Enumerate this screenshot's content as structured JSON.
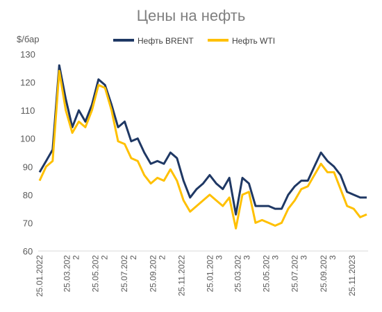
{
  "chart_data": {
    "type": "line",
    "title": "Цены на нефть",
    "ylabel": "$/бар",
    "ylim": [
      60,
      130
    ],
    "yticks": [
      60,
      70,
      80,
      90,
      100,
      110,
      120,
      130
    ],
    "grid": false,
    "legend_position": "top-center",
    "x_tick_labels": [
      [
        "25.01.2022"
      ],
      [
        "25.03.202",
        "2"
      ],
      [
        "25.05.202",
        "2"
      ],
      [
        "25.07.202",
        "2"
      ],
      [
        "25.09.202",
        "2"
      ],
      [
        "25.11.2022"
      ],
      [
        "25.01.202",
        "3"
      ],
      [
        "25.03.202",
        "3"
      ],
      [
        "25.05.202",
        "3"
      ],
      [
        "25.07.202",
        "3"
      ],
      [
        "25.09.202",
        "3"
      ],
      [
        "25.11.2023"
      ]
    ],
    "x": [
      "2022-01-25",
      "2022-02-08",
      "2022-02-22",
      "2022-03-08",
      "2022-03-22",
      "2022-04-05",
      "2022-04-19",
      "2022-05-03",
      "2022-05-17",
      "2022-05-31",
      "2022-06-14",
      "2022-06-28",
      "2022-07-12",
      "2022-07-26",
      "2022-08-09",
      "2022-08-23",
      "2022-09-06",
      "2022-09-20",
      "2022-10-04",
      "2022-10-18",
      "2022-11-01",
      "2022-11-15",
      "2022-11-29",
      "2022-12-13",
      "2022-12-27",
      "2023-01-10",
      "2023-01-24",
      "2023-02-07",
      "2023-02-21",
      "2023-03-07",
      "2023-03-21",
      "2023-04-04",
      "2023-04-18",
      "2023-05-02",
      "2023-05-16",
      "2023-05-30",
      "2023-06-13",
      "2023-06-27",
      "2023-07-11",
      "2023-07-25",
      "2023-08-08",
      "2023-08-22",
      "2023-09-05",
      "2023-09-19",
      "2023-10-03",
      "2023-10-17",
      "2023-10-31",
      "2023-11-14",
      "2023-11-28",
      "2023-12-12",
      "2023-12-26"
    ],
    "series": [
      {
        "name": "Нефть BRENT",
        "color": "#1f3864",
        "values": [
          88,
          92,
          96,
          126,
          114,
          104,
          110,
          106,
          112,
          121,
          119,
          112,
          104,
          106,
          99,
          100,
          95,
          91,
          92,
          91,
          95,
          93,
          85,
          79,
          82,
          84,
          87,
          84,
          82,
          86,
          73,
          86,
          84,
          76,
          76,
          76,
          75,
          75,
          80,
          83,
          85,
          85,
          90,
          95,
          92,
          90,
          87,
          81,
          80,
          79,
          79
        ]
      },
      {
        "name": "Нефть WTI",
        "color": "#ffc000",
        "values": [
          85,
          90,
          92,
          124,
          110,
          102,
          106,
          104,
          110,
          119,
          118,
          110,
          99,
          98,
          93,
          92,
          87,
          84,
          86,
          85,
          89,
          85,
          78,
          74,
          76,
          78,
          80,
          78,
          76,
          79,
          68,
          80,
          81,
          70,
          71,
          70,
          69,
          70,
          75,
          78,
          82,
          83,
          87,
          91,
          88,
          88,
          82,
          76,
          75,
          72,
          73
        ]
      }
    ]
  }
}
